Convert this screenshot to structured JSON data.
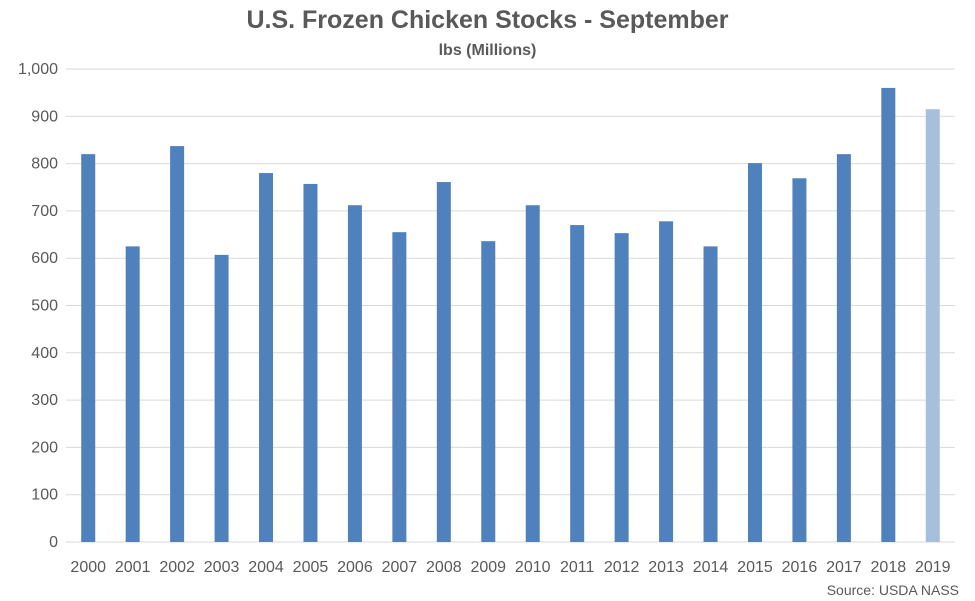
{
  "chart_data": {
    "type": "bar",
    "title": "U.S. Frozen Chicken Stocks - September",
    "subtitle": "lbs (Millions)",
    "source": "Source: USDA NASS",
    "categories": [
      "2000",
      "2001",
      "2002",
      "2003",
      "2004",
      "2005",
      "2006",
      "2007",
      "2008",
      "2009",
      "2010",
      "2011",
      "2012",
      "2013",
      "2014",
      "2015",
      "2016",
      "2017",
      "2018",
      "2019"
    ],
    "values": [
      820,
      625,
      837,
      607,
      780,
      757,
      712,
      655,
      761,
      636,
      712,
      670,
      653,
      678,
      625,
      801,
      769,
      820,
      960,
      915
    ],
    "highlight_index": 19,
    "colors": {
      "bar": "#4f81bd",
      "highlight": "#a5bfdd",
      "grid": "#d9d9d9",
      "text": "#595959"
    },
    "ylim": [
      0,
      1000
    ],
    "yticks": [
      0,
      100,
      200,
      300,
      400,
      500,
      600,
      700,
      800,
      900,
      1000
    ],
    "ytick_labels": [
      "0",
      "100",
      "200",
      "300",
      "400",
      "500",
      "600",
      "700",
      "800",
      "900",
      "1,000"
    ],
    "xlabel": "",
    "ylabel": "",
    "grid": true,
    "legend": "none"
  }
}
